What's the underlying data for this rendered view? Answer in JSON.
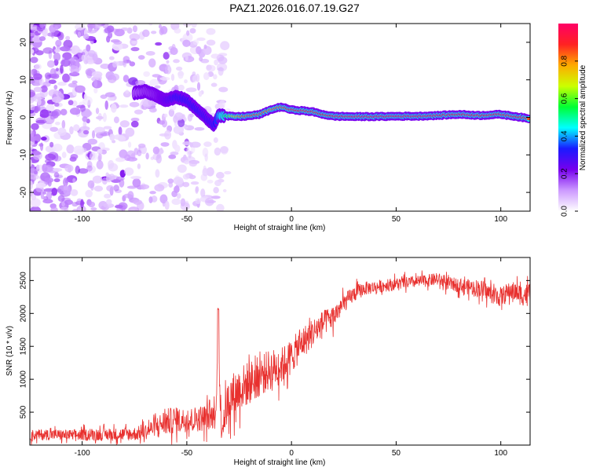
{
  "title": "PAZ1.2026.016.07.19.G27",
  "colors": {
    "snr_line": "#e8302e",
    "frame": "#000000"
  },
  "colorbar": {
    "label": "Normalized spectral amplitude",
    "ticks": [
      {
        "value": 0.0,
        "label": "0.0"
      },
      {
        "value": 0.2,
        "label": "0.2"
      },
      {
        "value": 0.4,
        "label": "0.4"
      },
      {
        "value": 0.6,
        "label": "0.6"
      },
      {
        "value": 0.8,
        "label": "0.8"
      }
    ],
    "range": [
      0,
      1
    ],
    "stops": [
      "#ffffff",
      "#cc99ff",
      "#7700ee",
      "#1a1aff",
      "#00ffff",
      "#00ff33",
      "#ccff00",
      "#ffaa00",
      "#ff2222",
      "#ff0066"
    ]
  },
  "chart_data": [
    {
      "type": "heatmap",
      "name": "spectrogram",
      "xlabel": "Height of straight line (km)",
      "ylabel": "Frequency (Hz)",
      "xlim": [
        -125,
        114
      ],
      "ylim": [
        -25,
        25
      ],
      "xticks": [
        {
          "value": -100,
          "label": "-100"
        },
        {
          "value": -50,
          "label": "-50"
        },
        {
          "value": 0,
          "label": "0"
        },
        {
          "value": 50,
          "label": "50"
        },
        {
          "value": 100,
          "label": "100"
        }
      ],
      "yticks": [
        {
          "value": -20,
          "label": "-20"
        },
        {
          "value": -10,
          "label": "-10"
        },
        {
          "value": 0,
          "label": "0"
        },
        {
          "value": 10,
          "label": "10"
        },
        {
          "value": 20,
          "label": "20"
        }
      ],
      "ridge": {
        "height_km": [
          -75,
          -70,
          -65,
          -60,
          -55,
          -50,
          -45,
          -40,
          -37,
          -35,
          -30,
          -25,
          -20,
          -15,
          -10,
          -5,
          0,
          5,
          10,
          15,
          20,
          30,
          40,
          50,
          60,
          70,
          80,
          90,
          100,
          105,
          110,
          114
        ],
        "frequency_hz": [
          6.5,
          7.0,
          6.0,
          4.5,
          5.5,
          4.5,
          2.0,
          -0.5,
          -2.0,
          0.5,
          0.3,
          0.2,
          0.4,
          0.8,
          2.0,
          2.8,
          2.0,
          1.8,
          1.5,
          0.8,
          0.3,
          0.2,
          0.2,
          0.3,
          0.3,
          0.5,
          0.8,
          0.5,
          0.8,
          0.4,
          0.0,
          -0.5
        ],
        "normalized_amplitude": [
          0.15,
          0.18,
          0.2,
          0.25,
          0.3,
          0.3,
          0.3,
          0.28,
          0.3,
          0.38,
          0.6,
          0.8,
          0.85,
          0.85,
          0.82,
          0.85,
          0.88,
          0.9,
          0.9,
          0.9,
          0.92,
          0.95,
          0.95,
          0.95,
          0.95,
          0.93,
          0.92,
          0.93,
          0.9,
          0.92,
          0.9,
          0.85
        ]
      },
      "noise_region_km": [
        -125,
        -30
      ]
    },
    {
      "type": "line",
      "name": "snr",
      "xlabel": "Height of straight line (km)",
      "ylabel": "SNR (10 * v/v)",
      "xlim": [
        -125,
        114
      ],
      "ylim": [
        0,
        2850
      ],
      "xticks": [
        {
          "value": -100,
          "label": "-100"
        },
        {
          "value": -50,
          "label": "-50"
        },
        {
          "value": 0,
          "label": "0"
        },
        {
          "value": 50,
          "label": "50"
        },
        {
          "value": 100,
          "label": "100"
        }
      ],
      "yticks": [
        {
          "value": 500,
          "label": "500"
        },
        {
          "value": 1000,
          "label": "1000"
        },
        {
          "value": 1500,
          "label": "1500"
        },
        {
          "value": 2000,
          "label": "2000"
        },
        {
          "value": 2500,
          "label": "2500"
        }
      ],
      "series": [
        {
          "name": "SNR",
          "x": [
            -125,
            -115,
            -105,
            -95,
            -85,
            -75,
            -70,
            -65,
            -60,
            -55,
            -50,
            -45,
            -40,
            -36,
            -35,
            -34,
            -33,
            -30,
            -25,
            -20,
            -15,
            -10,
            -5,
            0,
            5,
            10,
            15,
            20,
            25,
            30,
            35,
            40,
            50,
            60,
            70,
            75,
            80,
            85,
            90,
            95,
            100,
            105,
            110,
            114
          ],
          "y": [
            150,
            160,
            150,
            160,
            160,
            170,
            200,
            280,
            350,
            380,
            380,
            400,
            420,
            450,
            2050,
            500,
            300,
            700,
            850,
            950,
            1050,
            1150,
            1200,
            1350,
            1550,
            1700,
            1850,
            1950,
            2150,
            2300,
            2380,
            2400,
            2450,
            2480,
            2520,
            2450,
            2430,
            2400,
            2380,
            2300,
            2250,
            2350,
            2280,
            2300
          ]
        }
      ],
      "noise_amplitude": [
        120,
        120,
        120,
        130,
        140,
        150,
        170,
        200,
        300,
        280,
        260,
        280,
        300,
        280,
        0,
        600,
        300,
        500,
        500,
        480,
        450,
        450,
        400,
        380,
        350,
        320,
        280,
        250,
        200,
        180,
        150,
        140,
        130,
        130,
        140,
        150,
        150,
        170,
        200,
        200,
        220,
        200,
        240,
        250
      ]
    }
  ]
}
